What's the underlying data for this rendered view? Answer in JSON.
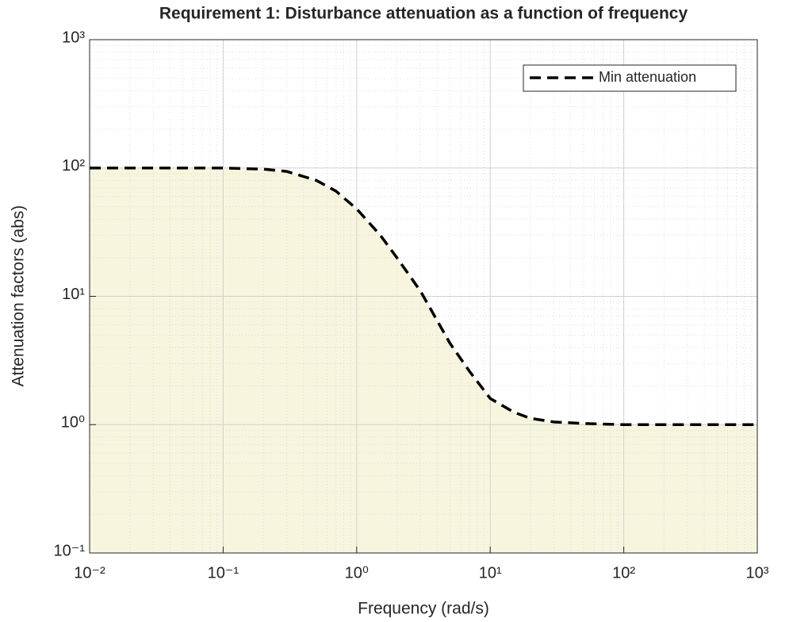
{
  "chart_data": {
    "type": "line",
    "title": "Requirement 1: Disturbance attenuation as a function of frequency",
    "xlabel": "Frequency (rad/s)",
    "ylabel": "Attenuation factors (abs)",
    "x": [
      0.01,
      0.1,
      0.2,
      0.3,
      0.5,
      0.7,
      1,
      1.5,
      2,
      3,
      5,
      7,
      10,
      15,
      20,
      30,
      50,
      100,
      1000
    ],
    "series": [
      {
        "name": "Min attenuation",
        "color": "#000000",
        "fill_color": "#f7f5de",
        "line_style": "dashed",
        "values": [
          100,
          100,
          98,
          94,
          80,
          66,
          48,
          30,
          20,
          11,
          4.3,
          2.6,
          1.6,
          1.25,
          1.12,
          1.05,
          1.02,
          1.0,
          1.0
        ]
      }
    ],
    "xscale": "log",
    "yscale": "log",
    "xlim": [
      0.01,
      1000
    ],
    "ylim": [
      0.1,
      1000
    ],
    "xticks": [
      {
        "value": 0.01,
        "label": "10⁻²"
      },
      {
        "value": 0.1,
        "label": "10⁻¹"
      },
      {
        "value": 1,
        "label": "10⁰"
      },
      {
        "value": 10,
        "label": "10¹"
      },
      {
        "value": 100,
        "label": "10²"
      },
      {
        "value": 1000,
        "label": "10³"
      }
    ],
    "yticks": [
      {
        "value": 0.1,
        "label": "10⁻¹"
      },
      {
        "value": 1,
        "label": "10⁰"
      },
      {
        "value": 10,
        "label": "10¹"
      },
      {
        "value": 100,
        "label": "10²"
      },
      {
        "value": 1000,
        "label": "10³"
      }
    ],
    "grid": true,
    "minor_grid": true,
    "legend": "upper right"
  }
}
